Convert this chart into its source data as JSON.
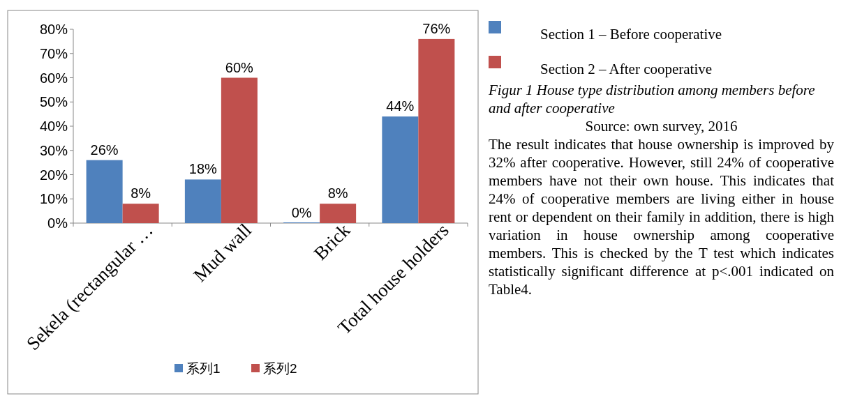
{
  "chart_data": {
    "type": "bar",
    "categories": [
      "Sekela (rectangular …",
      "Mud wall",
      "Brick",
      "Total house holders"
    ],
    "series": [
      {
        "name": "系列1",
        "color": "#4f81bd",
        "values": [
          26,
          18,
          0,
          44
        ],
        "value_labels": [
          "26%",
          "18%",
          "0%",
          "44%"
        ]
      },
      {
        "name": "系列2",
        "color": "#c0504d",
        "values": [
          8,
          60,
          8,
          76
        ],
        "value_labels": [
          "8%",
          "60%",
          "8%",
          "76%"
        ]
      }
    ],
    "ylim": [
      0,
      80
    ],
    "yticks": [
      {
        "value": 0,
        "label": "0%"
      },
      {
        "value": 10,
        "label": "10%"
      },
      {
        "value": 20,
        "label": "20%"
      },
      {
        "value": 30,
        "label": "30%"
      },
      {
        "value": 40,
        "label": "40%"
      },
      {
        "value": 50,
        "label": "50%"
      },
      {
        "value": 60,
        "label": "60%"
      },
      {
        "value": 70,
        "label": "70%"
      },
      {
        "value": 80,
        "label": "80%"
      }
    ],
    "legend": "bottom",
    "grid": false,
    "annotations": [
      "Section 1 – Before cooperative",
      "Section 2 – After cooperative",
      "Figur 1 House type distribution among members before and after cooperative",
      "Source: own survey, 2016",
      "The result indicates that house ownership is improved by 32% after cooperative. However, still 24% of cooperative members have not their own house. This indicates that 24% of cooperative members are living either in house rent or dependent on their family in addition, there is high variation in house ownership among cooperative members. This is checked by the T test which indicates statistically significant difference at p<.001 indicated on Table4."
    ]
  }
}
